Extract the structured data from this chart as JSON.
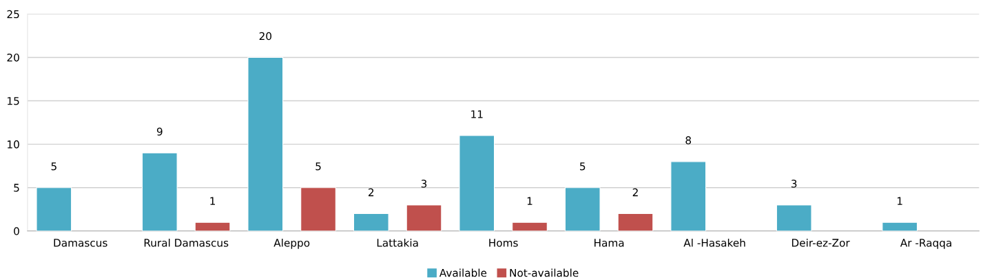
{
  "chart_data": {
    "type": "bar",
    "categories": [
      "Damascus",
      "Rural Damascus",
      "Aleppo",
      "Lattakia",
      "Homs",
      "Hama",
      "Al -Hasakeh",
      "Deir-ez-Zor",
      "Ar -Raqqa"
    ],
    "series": [
      {
        "name": "Available",
        "color": "#4bacc6",
        "values": [
          5,
          9,
          20,
          2,
          11,
          5,
          8,
          3,
          1
        ]
      },
      {
        "name": "Not-available",
        "color": "#c0504d",
        "values": [
          null,
          1,
          5,
          3,
          1,
          2,
          null,
          null,
          null
        ]
      }
    ],
    "ylim": [
      0,
      25
    ],
    "yticks": [
      0,
      5,
      10,
      15,
      20,
      25
    ],
    "grid": "y",
    "legend": "bottom",
    "data_labels": true
  }
}
